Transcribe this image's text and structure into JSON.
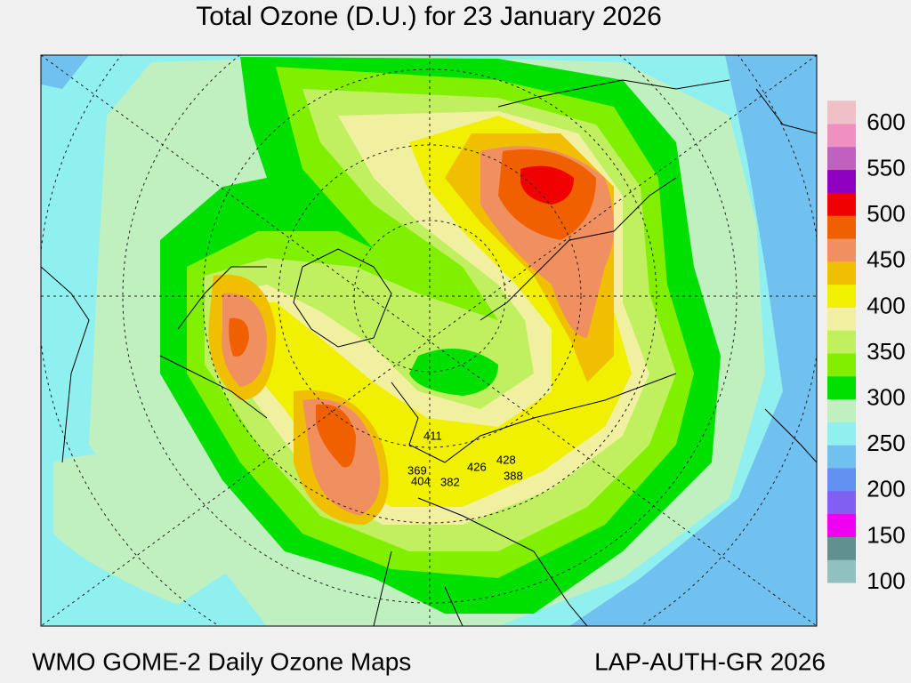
{
  "title": "Total Ozone (D.U.) for 23 January 2026",
  "footer": {
    "left": "WMO GOME-2 Daily Ozone Maps",
    "right": "LAP-AUTH-GR 2026"
  },
  "colorbar": {
    "ticks": [
      100,
      150,
      200,
      250,
      300,
      350,
      400,
      450,
      500,
      550,
      600
    ],
    "colors": [
      "#90c0c0",
      "#609090",
      "#f000f0",
      "#8060f0",
      "#6090f0",
      "#70c0f0",
      "#90f0f0",
      "#c0f0c0",
      "#00e000",
      "#80f000",
      "#c0f060",
      "#f0f0a0",
      "#f0f000",
      "#f0c000",
      "#f09060",
      "#f06000",
      "#f00000",
      "#9000c0",
      "#c060c0",
      "#f090c0",
      "#f0c0c8"
    ]
  },
  "stations": [
    {
      "label": 411
    },
    {
      "label": 369
    },
    {
      "label": 404
    },
    {
      "label": 382
    },
    {
      "label": 426
    },
    {
      "label": 428
    },
    {
      "label": 388
    }
  ]
}
